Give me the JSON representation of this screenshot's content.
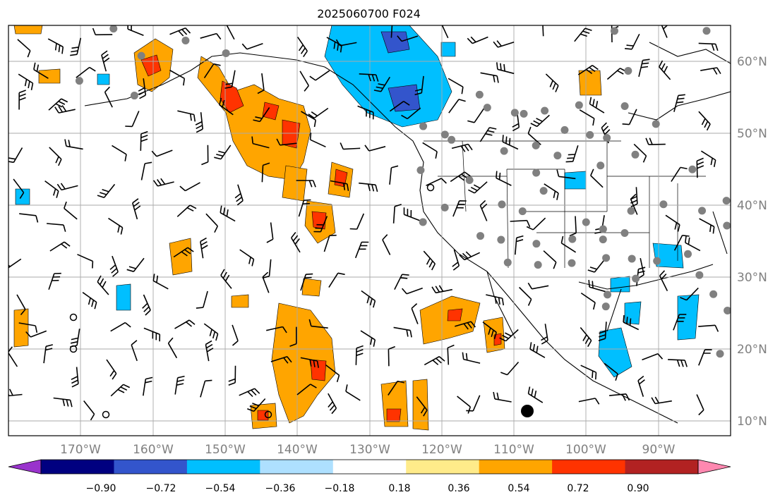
{
  "title": "2025060700 F024",
  "map": {
    "projection": "PlateCarree",
    "lon_range": [
      -180,
      -80
    ],
    "lat_range": [
      8,
      65
    ],
    "lon_labels": [
      "170°W",
      "160°W",
      "150°W",
      "140°W",
      "130°W",
      "120°W",
      "110°W",
      "100°W",
      "90°W"
    ],
    "lat_labels": [
      "60°N",
      "50°N",
      "40°N",
      "30°N",
      "20°N",
      "10°N"
    ],
    "gridlines": true,
    "coastlines": true,
    "state_borders": true,
    "wind_barbs": true,
    "station_markers": true,
    "station_marker_color": "#808080"
  },
  "colorbar": {
    "ticks": [
      "−0.90",
      "−0.72",
      "−0.54",
      "−0.36",
      "−0.18",
      "0.18",
      "0.36",
      "0.54",
      "0.72",
      "0.90"
    ],
    "colors": [
      "#9933cc",
      "#000080",
      "#3355cc",
      "#00bfff",
      "#aee0ff",
      "#ffffff",
      "#ffeb8a",
      "#ffa500",
      "#ff3300",
      "#b22222",
      "#ff88b0"
    ],
    "extend": "both"
  }
}
